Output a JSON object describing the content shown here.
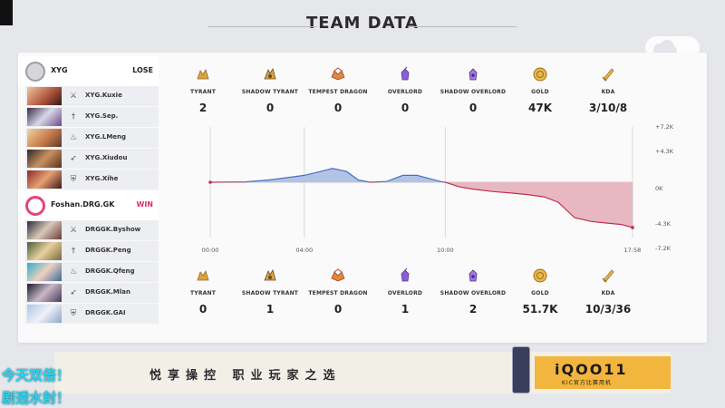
{
  "header": {
    "title": "TEAM DATA"
  },
  "team1": {
    "name": "XYG",
    "result": "LOSE",
    "players": [
      {
        "name": "XYG.Kuxie",
        "role_icon": "crossed-swords-icon"
      },
      {
        "name": "XYG.Sep.",
        "role_icon": "dagger-icon"
      },
      {
        "name": "XYG.LMeng",
        "role_icon": "flame-icon"
      },
      {
        "name": "XYG.Xiudou",
        "role_icon": "bow-icon"
      },
      {
        "name": "XYG.Xihe",
        "role_icon": "shield-icon"
      }
    ],
    "stats": {
      "tyrant": "2",
      "shadow_tyrant": "0",
      "tempest_dragon": "0",
      "overlord": "0",
      "shadow_overlord": "0",
      "gold": "47K",
      "kda": "3/10/8"
    }
  },
  "team2": {
    "name": "Foshan.DRG.GK",
    "result": "WIN",
    "players": [
      {
        "name": "DRGGK.Byshow",
        "role_icon": "crossed-swords-icon"
      },
      {
        "name": "DRGGK.Peng",
        "role_icon": "dagger-icon"
      },
      {
        "name": "DRGGK.Qfeng",
        "role_icon": "flame-icon"
      },
      {
        "name": "DRGGK.Mlan",
        "role_icon": "bow-icon"
      },
      {
        "name": "DRGGK.GAI",
        "role_icon": "shield-icon"
      }
    ],
    "stats": {
      "tyrant": "0",
      "shadow_tyrant": "1",
      "tempest_dragon": "0",
      "overlord": "1",
      "shadow_overlord": "2",
      "gold": "51.7K",
      "kda": "10/3/36"
    }
  },
  "stat_labels": {
    "tyrant": "TYRANT",
    "shadow_tyrant": "SHADOW TYRANT",
    "tempest_dragon": "TEMPEST DRAGON",
    "overlord": "OVERLORD",
    "shadow_overlord": "SHADOW OVERLORD",
    "gold": "GOLD",
    "kda": "KDA"
  },
  "stat_icons": {
    "tyrant": "tyrant-icon",
    "shadow_tyrant": "shadow-tyrant-icon",
    "tempest_dragon": "tempest-dragon-icon",
    "overlord": "overlord-icon",
    "shadow_overlord": "shadow-overlord-icon",
    "gold": "gold-coin-icon",
    "kda": "kda-sword-icon"
  },
  "colors": {
    "team1_fill": "#b3c3e6",
    "team1_line": "#4a6fc4",
    "team2_fill": "#e8b8c2",
    "team2_line": "#c0304f",
    "gold_icon": "#d9a340",
    "purple_icon": "#8b5ed1",
    "dragon_icon": "#d9763a",
    "win": "#d9305f"
  },
  "chart_data": {
    "type": "area",
    "x_ticks": [
      "00:00",
      "04:00",
      "10:00",
      "17:58"
    ],
    "y_ticks": [
      "+7.2K",
      "+4.3K",
      "0K",
      "-4.3K",
      "-7.2K"
    ],
    "ylim": [
      -7.2,
      7.2
    ],
    "xlim": [
      0,
      17.97
    ],
    "x": [
      0,
      1.5,
      2.5,
      3.5,
      4.0,
      4.7,
      5.2,
      5.8,
      6.3,
      6.8,
      7.5,
      8.2,
      8.8,
      9.3,
      9.8,
      10.0,
      10.6,
      11.2,
      12.0,
      12.8,
      13.5,
      14.2,
      14.8,
      15.5,
      16.2,
      16.8,
      17.5,
      17.97
    ],
    "values": [
      0,
      0.05,
      0.3,
      0.7,
      0.9,
      1.4,
      1.8,
      1.4,
      0.3,
      0.0,
      0.1,
      0.9,
      0.9,
      0.5,
      0.1,
      0.0,
      -0.6,
      -0.9,
      -1.2,
      -1.4,
      -1.6,
      -1.9,
      -2.6,
      -4.6,
      -5.1,
      -5.3,
      -5.5,
      -5.9
    ]
  },
  "banner": {
    "slogan": "悦享操控  职业玩家之选",
    "brand": "iQOO11",
    "brand_sub": "KIC官方比赛用机"
  },
  "overlay": {
    "line1": "今天双倍！",
    "line2": "剧透水封！"
  }
}
